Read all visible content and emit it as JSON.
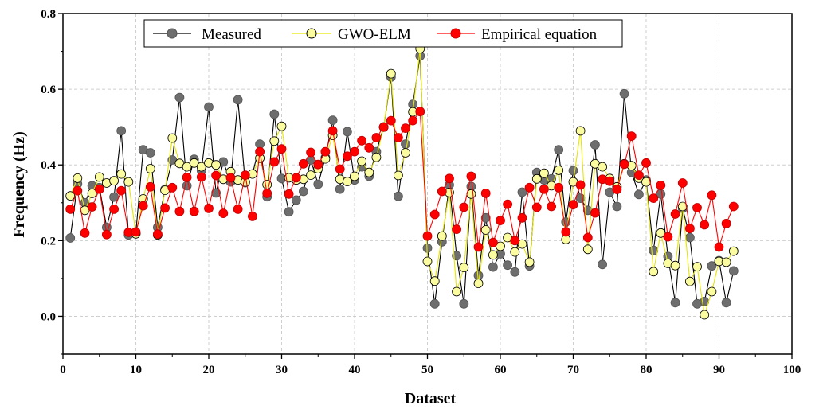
{
  "chart_data": {
    "type": "line",
    "title": "",
    "xlabel": "Dataset",
    "ylabel": "Frequency (Hz)",
    "xlim": [
      0,
      100
    ],
    "ylim": [
      -0.1,
      0.8
    ],
    "xticks": [
      0,
      10,
      20,
      30,
      40,
      50,
      60,
      70,
      80,
      90,
      100
    ],
    "yticks": [
      0.0,
      0.2,
      0.4,
      0.6,
      0.8
    ],
    "ytick_labels": [
      "0.0",
      "0.2",
      "0.4",
      "0.6",
      "0.8"
    ],
    "grid": true,
    "legend_position": "top-center",
    "x": [
      1,
      2,
      3,
      4,
      5,
      6,
      7,
      8,
      9,
      10,
      11,
      12,
      13,
      14,
      15,
      16,
      17,
      18,
      19,
      20,
      21,
      22,
      23,
      24,
      25,
      26,
      27,
      28,
      29,
      30,
      31,
      32,
      33,
      34,
      35,
      36,
      37,
      38,
      39,
      40,
      41,
      42,
      43,
      44,
      45,
      46,
      47,
      48,
      49,
      50,
      51,
      52,
      53,
      54,
      55,
      56,
      57,
      58,
      59,
      60,
      61,
      62,
      63,
      64,
      65,
      66,
      67,
      68,
      69,
      70,
      71,
      72,
      73,
      74,
      75,
      76,
      77,
      78,
      79,
      80,
      81,
      82,
      83,
      84,
      85,
      86,
      87,
      88,
      89,
      90,
      91,
      92
    ],
    "series": [
      {
        "name": "Measured",
        "color": "#6e6e6e",
        "line_color": "#000000",
        "values": [
          0.207,
          0.35,
          0.3,
          0.345,
          0.34,
          0.235,
          0.315,
          0.49,
          0.215,
          0.22,
          0.44,
          0.432,
          0.235,
          0.335,
          0.413,
          0.578,
          0.345,
          0.415,
          0.385,
          0.553,
          0.326,
          0.408,
          0.355,
          0.572,
          0.353,
          0.376,
          0.455,
          0.316,
          0.534,
          0.364,
          0.276,
          0.307,
          0.33,
          0.413,
          0.349,
          0.42,
          0.518,
          0.336,
          0.488,
          0.36,
          0.395,
          0.37,
          0.435,
          0.5,
          0.632,
          0.317,
          0.455,
          0.56,
          0.688,
          0.18,
          0.033,
          0.197,
          0.347,
          0.16,
          0.033,
          0.343,
          0.108,
          0.26,
          0.13,
          0.165,
          0.135,
          0.117,
          0.328,
          0.133,
          0.38,
          0.36,
          0.363,
          0.44,
          0.249,
          0.385,
          0.312,
          0.28,
          0.453,
          0.137,
          0.328,
          0.29,
          0.588,
          0.38,
          0.322,
          0.36,
          0.174,
          0.323,
          0.158,
          0.036,
          0.285,
          0.208,
          0.033,
          0.039,
          0.133,
          0.147,
          0.036,
          0.12
        ]
      },
      {
        "name": "GWO-ELM",
        "color": "#fbfba0",
        "line_color": "#e6e600",
        "values": [
          0.318,
          0.365,
          0.28,
          0.325,
          0.368,
          0.352,
          0.358,
          0.376,
          0.355,
          0.218,
          0.31,
          0.39,
          0.215,
          0.333,
          0.471,
          0.404,
          0.395,
          0.405,
          0.395,
          0.405,
          0.4,
          0.362,
          0.382,
          0.36,
          0.355,
          0.376,
          0.418,
          0.348,
          0.463,
          0.502,
          0.366,
          0.36,
          0.362,
          0.373,
          0.39,
          0.416,
          0.478,
          0.362,
          0.356,
          0.37,
          0.41,
          0.38,
          0.42,
          0.5,
          0.641,
          0.372,
          0.432,
          0.54,
          0.707,
          0.145,
          0.093,
          0.212,
          0.327,
          0.065,
          0.129,
          0.323,
          0.087,
          0.228,
          0.162,
          0.185,
          0.208,
          0.17,
          0.191,
          0.143,
          0.363,
          0.378,
          0.345,
          0.386,
          0.203,
          0.355,
          0.49,
          0.177,
          0.403,
          0.395,
          0.364,
          0.342,
          0.403,
          0.398,
          0.365,
          0.355,
          0.118,
          0.22,
          0.14,
          0.134,
          0.29,
          0.092,
          0.131,
          0.004,
          0.065,
          0.145,
          0.143,
          0.172
        ]
      },
      {
        "name": "Empirical equation",
        "color": "#ff0000",
        "line_color": "#ff0000",
        "values": [
          0.283,
          0.332,
          0.22,
          0.289,
          0.336,
          0.216,
          0.283,
          0.332,
          0.222,
          0.223,
          0.292,
          0.342,
          0.217,
          0.286,
          0.34,
          0.277,
          0.367,
          0.277,
          0.368,
          0.285,
          0.372,
          0.272,
          0.366,
          0.283,
          0.373,
          0.264,
          0.435,
          0.325,
          0.408,
          0.442,
          0.323,
          0.366,
          0.403,
          0.433,
          0.401,
          0.435,
          0.49,
          0.389,
          0.423,
          0.435,
          0.464,
          0.445,
          0.472,
          0.5,
          0.517,
          0.472,
          0.497,
          0.517,
          0.541,
          0.212,
          0.269,
          0.33,
          0.364,
          0.23,
          0.288,
          0.37,
          0.183,
          0.325,
          0.195,
          0.253,
          0.296,
          0.2,
          0.26,
          0.34,
          0.288,
          0.336,
          0.29,
          0.34,
          0.223,
          0.295,
          0.347,
          0.208,
          0.273,
          0.362,
          0.357,
          0.335,
          0.402,
          0.476,
          0.373,
          0.405,
          0.312,
          0.346,
          0.21,
          0.27,
          0.352,
          0.232,
          0.287,
          0.242,
          0.32,
          0.183,
          0.245,
          0.29
        ]
      }
    ]
  }
}
